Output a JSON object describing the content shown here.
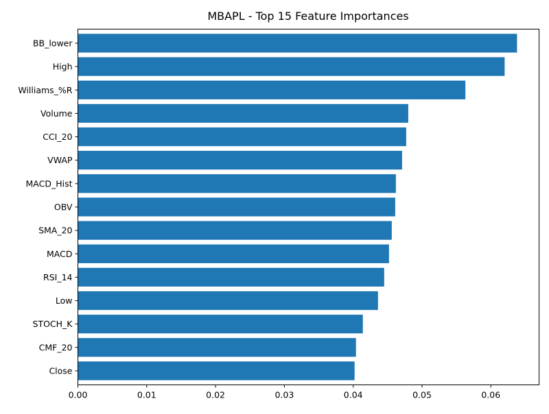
{
  "chart_data": {
    "type": "bar",
    "orientation": "horizontal",
    "title": "MBAPL - Top 15 Feature Importances",
    "xlabel": "",
    "ylabel": "",
    "xlim": [
      0,
      0.067
    ],
    "xticks": [
      0.0,
      0.01,
      0.02,
      0.03,
      0.04,
      0.05,
      0.06
    ],
    "xtick_labels": [
      "0.00",
      "0.01",
      "0.02",
      "0.03",
      "0.04",
      "0.05",
      "0.06"
    ],
    "grid": false,
    "bar_color": "#1f77b4",
    "categories": [
      "BB_lower",
      "High",
      "Williams_%R",
      "Volume",
      "CCI_20",
      "VWAP",
      "MACD_Hist",
      "OBV",
      "SMA_20",
      "MACD",
      "RSI_14",
      "Low",
      "STOCH_K",
      "CMF_20",
      "Close"
    ],
    "values": [
      0.0638,
      0.062,
      0.0563,
      0.048,
      0.0477,
      0.0471,
      0.0462,
      0.0461,
      0.0456,
      0.0452,
      0.0445,
      0.0436,
      0.0414,
      0.0404,
      0.0402
    ]
  }
}
